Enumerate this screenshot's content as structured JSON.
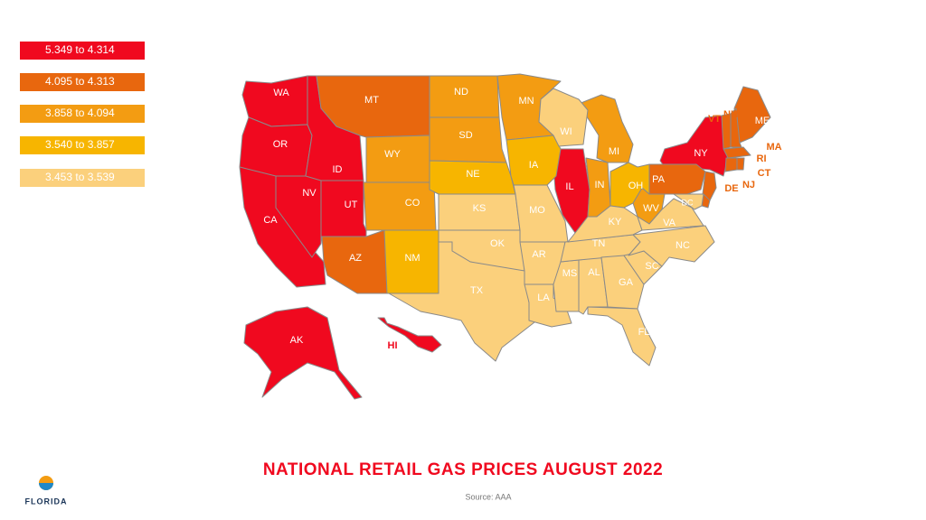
{
  "legend": [
    {
      "label": "5.349 to 4.314",
      "color": "#f0091f",
      "states": [
        "WA",
        "OR",
        "CA",
        "NV",
        "ID",
        "UT",
        "IL",
        "NY",
        "AK",
        "HI"
      ]
    },
    {
      "label": "4.095 to 4.313",
      "color": "#e8670e",
      "states": [
        "MT",
        "AZ",
        "PA",
        "ME",
        "VT",
        "NH",
        "MA",
        "RI",
        "CT",
        "NJ",
        "DE"
      ]
    },
    {
      "label": "3.858 to 4.094",
      "color": "#f39c12",
      "states": [
        "ND",
        "SD",
        "WY",
        "CO",
        "MN",
        "MI",
        "IN",
        "WV"
      ]
    },
    {
      "label": "3.540 to 3.857",
      "color": "#f7b500",
      "states": [
        "NE",
        "IA",
        "NM",
        "OH"
      ]
    },
    {
      "label": "3.453 to 3.539",
      "color": "#fbd07c",
      "states": [
        "KS",
        "OK",
        "TX",
        "MO",
        "AR",
        "LA",
        "WI",
        "MS",
        "AL",
        "TN",
        "KY",
        "GA",
        "SC",
        "NC",
        "VA",
        "FL",
        "DC"
      ]
    }
  ],
  "title": "NATIONAL RETAIL GAS PRICES AUGUST 2022",
  "source": "Source: AAA",
  "logo": "FLORIDA"
}
